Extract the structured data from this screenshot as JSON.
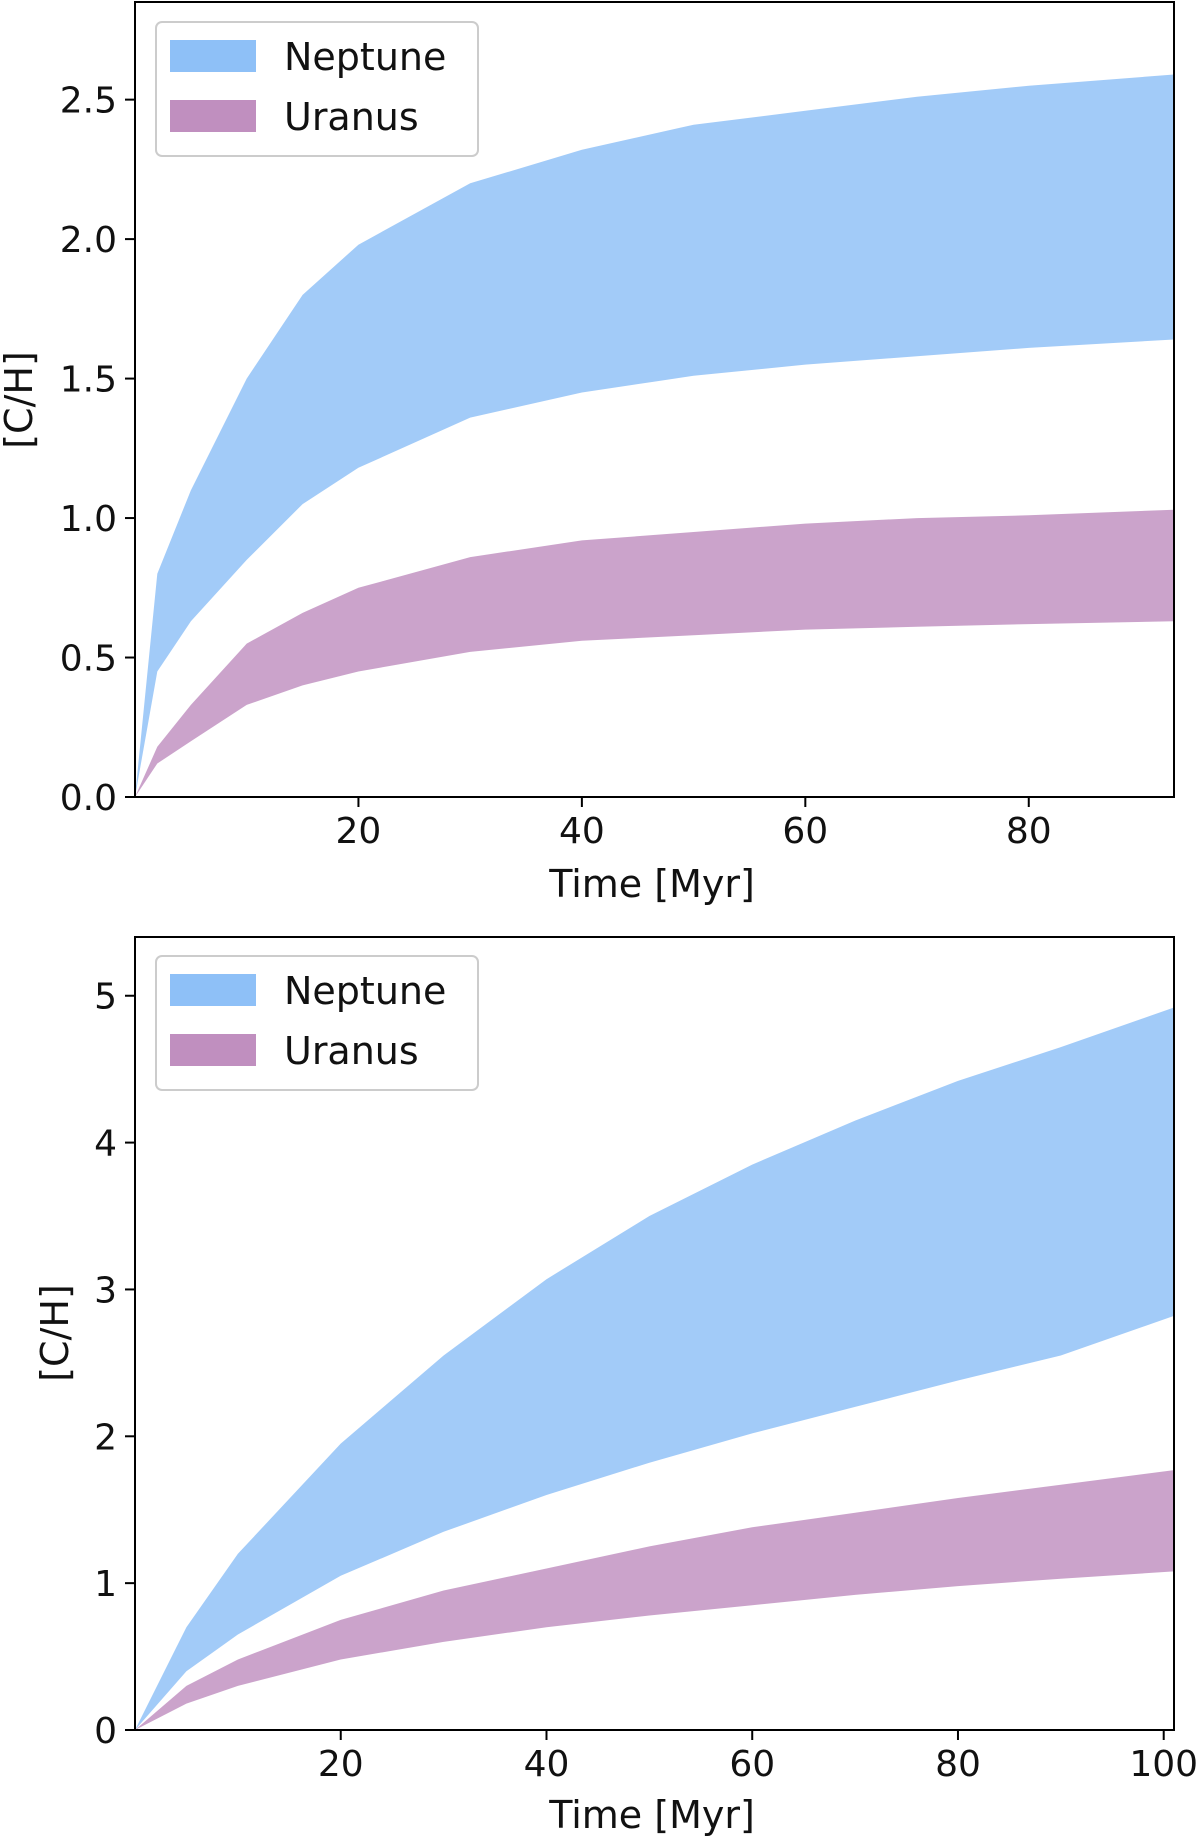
{
  "chart_data": [
    {
      "type": "area",
      "xlabel": "Time [Myr]",
      "ylabel": "[C/H]",
      "xlim": [
        0,
        93
      ],
      "ylim": [
        0,
        2.85
      ],
      "xticks": [
        20,
        40,
        60,
        80
      ],
      "xtick_labels": [
        "20",
        "40",
        "60",
        "80"
      ],
      "yticks": [
        0,
        0.5,
        1.0,
        1.5,
        2.0,
        2.5
      ],
      "ytick_labels": [
        "0.0",
        "0.5",
        "1.0",
        "1.5",
        "2.0",
        "2.5"
      ],
      "grid": false,
      "legend_position": "top-left",
      "x": [
        0,
        2,
        5,
        10,
        15,
        20,
        30,
        40,
        50,
        60,
        70,
        80,
        93
      ],
      "series": [
        {
          "name": "Neptune",
          "color": "#8ec0f7",
          "lower": [
            0,
            0.45,
            0.63,
            0.85,
            1.05,
            1.18,
            1.36,
            1.45,
            1.51,
            1.55,
            1.58,
            1.61,
            1.64
          ],
          "upper": [
            0,
            0.8,
            1.1,
            1.5,
            1.8,
            1.98,
            2.2,
            2.32,
            2.41,
            2.46,
            2.51,
            2.55,
            2.59
          ]
        },
        {
          "name": "Uranus",
          "color": "#c08fbf",
          "lower": [
            0,
            0.12,
            0.2,
            0.33,
            0.4,
            0.45,
            0.52,
            0.56,
            0.58,
            0.6,
            0.61,
            0.62,
            0.63
          ],
          "upper": [
            0,
            0.18,
            0.33,
            0.55,
            0.66,
            0.75,
            0.86,
            0.92,
            0.95,
            0.98,
            1.0,
            1.01,
            1.03
          ]
        }
      ]
    },
    {
      "type": "area",
      "xlabel": "Time [Myr]",
      "ylabel": "[C/H]",
      "xlim": [
        0,
        101
      ],
      "ylim": [
        0,
        5.4
      ],
      "xticks": [
        20,
        40,
        60,
        80,
        100
      ],
      "xtick_labels": [
        "20",
        "40",
        "60",
        "80",
        "100"
      ],
      "yticks": [
        0,
        1,
        2,
        3,
        4,
        5
      ],
      "ytick_labels": [
        "0",
        "1",
        "2",
        "3",
        "4",
        "5"
      ],
      "grid": false,
      "legend_position": "top-left",
      "x": [
        0,
        5,
        10,
        20,
        30,
        40,
        50,
        60,
        70,
        80,
        90,
        101
      ],
      "series": [
        {
          "name": "Neptune",
          "color": "#8ec0f7",
          "lower": [
            0,
            0.4,
            0.65,
            1.05,
            1.35,
            1.6,
            1.82,
            2.02,
            2.2,
            2.38,
            2.55,
            2.82
          ],
          "upper": [
            0,
            0.7,
            1.2,
            1.95,
            2.55,
            3.07,
            3.5,
            3.85,
            4.15,
            4.42,
            4.65,
            4.92
          ]
        },
        {
          "name": "Uranus",
          "color": "#c08fbf",
          "lower": [
            0,
            0.18,
            0.3,
            0.48,
            0.6,
            0.7,
            0.78,
            0.85,
            0.92,
            0.98,
            1.03,
            1.08
          ],
          "upper": [
            0,
            0.3,
            0.48,
            0.75,
            0.95,
            1.1,
            1.25,
            1.38,
            1.48,
            1.58,
            1.67,
            1.77
          ]
        }
      ]
    }
  ]
}
